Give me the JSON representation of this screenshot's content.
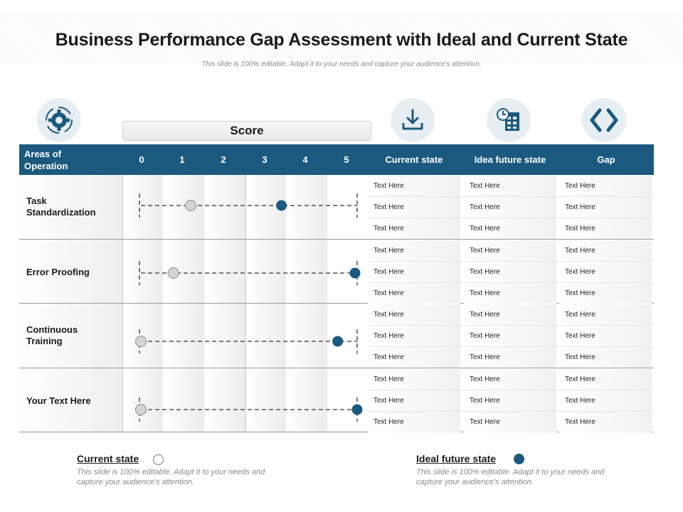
{
  "title": "Business Performance Gap Assessment with Ideal and Current State",
  "subtitle": "This slide is 100% editable. Adapt it to your needs and capture your audience's attention.",
  "icons": [
    "gear-icon",
    "download-icon",
    "calendar-clock-icon",
    "code-brackets-icon"
  ],
  "score_label": "Score",
  "colors": {
    "header": "#1b5a7e",
    "ideal_dot": "#1b5a7e",
    "current_dot": "#d3d3d3"
  },
  "header": {
    "areas": "Areas of Operation",
    "scale": [
      "0",
      "1",
      "2",
      "3",
      "4",
      "5"
    ],
    "current_state": "Current state",
    "ideal_future_state": "Idea future state",
    "gap": "Gap"
  },
  "chart_data": {
    "type": "scatter",
    "xlim": [
      0,
      5
    ],
    "categories": [
      "Task Standardization",
      "Error Proofing",
      "Continuous Training",
      "Your Text Here"
    ],
    "series": [
      {
        "name": "Current state",
        "values": [
          1.15,
          0.75,
          0.0,
          0.0
        ]
      },
      {
        "name": "Ideal future state",
        "values": [
          3.25,
          4.95,
          4.55,
          5.0
        ]
      }
    ]
  },
  "rows": [
    {
      "area": "Task Standardization",
      "cells": [
        [
          "Text Here",
          "Text Here",
          "Text Here"
        ],
        [
          "Text Here",
          "Text Here",
          "Text Here"
        ],
        [
          "Text Here",
          "Text Here",
          "Text Here"
        ]
      ]
    },
    {
      "area": "Error Proofing",
      "cells": [
        [
          "Text Here",
          "Text Here",
          "Text Here"
        ],
        [
          "Text Here",
          "Text Here",
          "Text Here"
        ],
        [
          "Text Here",
          "Text Here",
          "Text Here"
        ]
      ]
    },
    {
      "area": "Continuous Training",
      "cells": [
        [
          "Text Here",
          "Text Here",
          "Text Here"
        ],
        [
          "Text Here",
          "Text Here",
          "Text Here"
        ],
        [
          "Text Here",
          "Text Here",
          "Text Here"
        ]
      ]
    },
    {
      "area": "Your Text Here",
      "cells": [
        [
          "Text Here",
          "Text Here",
          "Text Here"
        ],
        [
          "Text Here",
          "Text Here",
          "Text Here"
        ],
        [
          "Text Here",
          "Text Here",
          "Text Here"
        ]
      ]
    }
  ],
  "legend": {
    "current": {
      "label": "Current state",
      "desc": "This slide is 100% editable. Adapt it to your needs and capture your audience's attention."
    },
    "ideal": {
      "label": "Ideal future state",
      "desc": "This slide is 100% editable. Adapt it to your needs and capture your audience's attention."
    }
  }
}
